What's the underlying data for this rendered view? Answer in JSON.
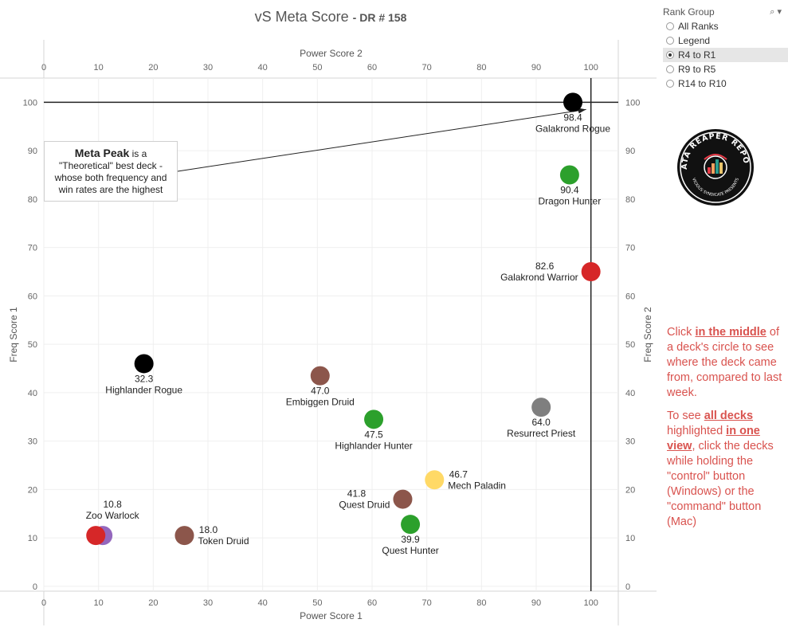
{
  "title": {
    "main": "vS Meta Score",
    "sub": "- DR # 158"
  },
  "chart_data": {
    "type": "scatter",
    "top_axis_label": "Power Score 2",
    "bottom_axis_label": "Power Score 1",
    "left_axis_label": "Freq Score 1",
    "right_axis_label": "Freq Score 2",
    "xlim": [
      0,
      105
    ],
    "ylim": [
      -1,
      105
    ],
    "x_ticks": [
      0,
      10,
      20,
      30,
      40,
      50,
      60,
      70,
      80,
      90,
      100
    ],
    "y_ticks": [
      0,
      10,
      20,
      30,
      40,
      50,
      60,
      70,
      80,
      90,
      100
    ],
    "grid": true,
    "reference_lines": {
      "x": 100,
      "y": 100
    },
    "points": [
      {
        "name": "Galakrond Rogue",
        "score": "98.4",
        "x": 96.7,
        "y": 100,
        "color": "#000000",
        "label_pos": "below"
      },
      {
        "name": "Dragon Hunter",
        "score": "90.4",
        "x": 96.1,
        "y": 85,
        "color": "#2ca02c",
        "label_pos": "below"
      },
      {
        "name": "Galakrond Warrior",
        "score": "82.6",
        "x": 100,
        "y": 65,
        "color": "#d62728",
        "label_pos": "left"
      },
      {
        "name": "Highlander Rogue",
        "score": "32.3",
        "x": 18.3,
        "y": 46,
        "color": "#000000",
        "label_pos": "below"
      },
      {
        "name": "Embiggen Druid",
        "score": "47.0",
        "x": 50.5,
        "y": 43.5,
        "color": "#8c564b",
        "label_pos": "below"
      },
      {
        "name": "Highlander Hunter",
        "score": "47.5",
        "x": 60.3,
        "y": 34.5,
        "color": "#2ca02c",
        "label_pos": "below"
      },
      {
        "name": "Resurrect Priest",
        "score": "64.0",
        "x": 90.9,
        "y": 37,
        "color": "#7f7f7f",
        "label_pos": "below"
      },
      {
        "name": "Mech Paladin",
        "score": "46.7",
        "x": 71.4,
        "y": 22,
        "color": "#ffd966",
        "label_pos": "right"
      },
      {
        "name": "Quest Druid",
        "score": "41.8",
        "x": 65.6,
        "y": 18,
        "color": "#8c564b",
        "label_pos": "left"
      },
      {
        "name": "Quest Hunter",
        "score": "39.9",
        "x": 67.0,
        "y": 12.8,
        "color": "#2ca02c",
        "label_pos": "below"
      },
      {
        "name": "Zoo Warlock",
        "score": "10.8",
        "x": 10.8,
        "y": 10.5,
        "color": "#9467bd",
        "label_pos": "above"
      },
      {
        "name": "",
        "score": "",
        "x": 9.5,
        "y": 10.5,
        "color": "#d62728",
        "label_pos": "none"
      },
      {
        "name": "Token Druid",
        "score": "18.0",
        "x": 25.7,
        "y": 10.5,
        "color": "#8c564b",
        "label_pos": "right"
      }
    ]
  },
  "callout": {
    "highlight": "Meta Peak",
    "line1": " is a",
    "line2": "\"Theoretical\" best deck -",
    "line3": "whose both frequency and",
    "line4": "win rates are the highest"
  },
  "filter": {
    "title": "Rank Group",
    "tools": "⌕ ▾",
    "options": [
      "All Ranks",
      "Legend",
      "R4 to R1",
      "R9 to R5",
      "R14 to R10"
    ],
    "selected_index": 2
  },
  "logo": {
    "text": "DATA REAPER REPORT",
    "subtext": "VICIOUS SYNDICATE PRESENTS"
  },
  "note": {
    "p1_a": "Click ",
    "p1_b": "in the middle",
    "p1_c": " of a deck's circle to see where the deck came from, compared to last week.",
    "p2_a": "To see ",
    "p2_b": "all decks ",
    "p2_c": " highlighted ",
    "p2_d": "in one view",
    "p2_e": ", click the decks while holding the \"control\" button (Windows) or the \"command\" button (Mac)"
  }
}
